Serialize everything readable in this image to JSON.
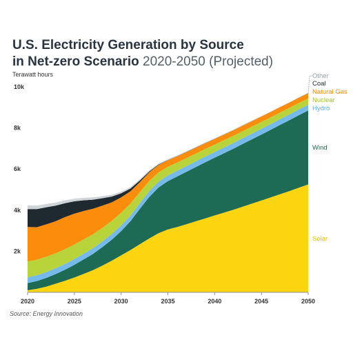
{
  "title_bold_line1": "U.S. Electricity Generation by Source",
  "title_bold_line2": "in Net-zero Scenario",
  "title_light_line2": "2020-2050 (Projected)",
  "unit_label": "Terawatt hours",
  "source": "Source: Energy Innovation",
  "chart_data": {
    "type": "area",
    "stacked": true,
    "x": [
      2020,
      2021,
      2022,
      2023,
      2024,
      2025,
      2026,
      2027,
      2028,
      2029,
      2030,
      2031,
      2032,
      2033,
      2034,
      2035,
      2036,
      2037,
      2038,
      2039,
      2040,
      2041,
      2042,
      2043,
      2044,
      2045,
      2046,
      2047,
      2048,
      2049,
      2050
    ],
    "xticks": [
      2020,
      2025,
      2030,
      2035,
      2040,
      2045,
      2050
    ],
    "ylim": [
      0,
      10000
    ],
    "yticks": [
      2000,
      4000,
      6000,
      8000,
      10000
    ],
    "ytick_labels": [
      "2k",
      "4k",
      "6k",
      "8k",
      "10k"
    ],
    "grid": false,
    "series": [
      {
        "name": "Solar",
        "color": "#fcd40f",
        "values": [
          100,
          170,
          280,
          420,
          560,
          720,
          900,
          1080,
          1300,
          1540,
          1800,
          2060,
          2340,
          2620,
          2880,
          3060,
          3180,
          3320,
          3460,
          3600,
          3740,
          3880,
          4020,
          4170,
          4320,
          4470,
          4620,
          4780,
          4930,
          5090,
          5250
        ]
      },
      {
        "name": "Wind",
        "color": "#1e6b55",
        "values": [
          350,
          380,
          420,
          470,
          540,
          620,
          700,
          790,
          900,
          1020,
          1180,
          1400,
          1720,
          2020,
          2220,
          2350,
          2460,
          2550,
          2640,
          2730,
          2810,
          2890,
          2970,
          3050,
          3130,
          3210,
          3290,
          3370,
          3450,
          3530,
          3600
        ]
      },
      {
        "name": "Hydro",
        "color": "#76baeb",
        "values": [
          280,
          280,
          280,
          280,
          280,
          280,
          280,
          280,
          280,
          280,
          280,
          280,
          280,
          280,
          280,
          280,
          280,
          280,
          280,
          280,
          280,
          280,
          280,
          280,
          280,
          280,
          280,
          280,
          280,
          280,
          280
        ]
      },
      {
        "name": "Nuclear",
        "color": "#b9d43a",
        "values": [
          770,
          760,
          750,
          730,
          720,
          710,
          700,
          680,
          660,
          640,
          620,
          580,
          540,
          500,
          460,
          420,
          400,
          390,
          380,
          370,
          360,
          355,
          350,
          345,
          340,
          335,
          330,
          325,
          320,
          315,
          310
        ]
      },
      {
        "name": "Natural Gas",
        "color": "#fb8c0c",
        "values": [
          1680,
          1580,
          1580,
          1560,
          1560,
          1500,
          1380,
          1240,
          1080,
          900,
          740,
          600,
          480,
          420,
          360,
          320,
          300,
          290,
          285,
          280,
          275,
          272,
          270,
          268,
          266,
          264,
          262,
          261,
          260,
          258,
          256
        ]
      },
      {
        "name": "Coal",
        "color": "#1f2a30",
        "values": [
          870,
          880,
          830,
          760,
          680,
          600,
          520,
          440,
          360,
          280,
          200,
          130,
          80,
          40,
          20,
          10,
          8,
          6,
          5,
          4,
          4,
          3,
          3,
          3,
          3,
          3,
          3,
          3,
          3,
          3,
          3
        ]
      },
      {
        "name": "Other",
        "color": "#cfd4d8",
        "values": [
          180,
          170,
          160,
          150,
          140,
          130,
          120,
          110,
          100,
          90,
          80,
          70,
          60,
          55,
          50,
          45,
          40,
          38,
          36,
          34,
          32,
          30,
          28,
          26,
          24,
          22,
          20,
          18,
          16,
          14,
          12
        ]
      }
    ],
    "legend": {
      "placement": "right",
      "order": [
        "Other",
        "Coal",
        "Natural Gas",
        "Nuclear",
        "Hydro",
        "Wind",
        "Solar"
      ]
    }
  }
}
